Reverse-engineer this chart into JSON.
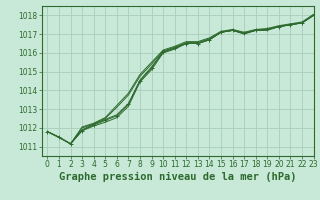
{
  "title": "Graphe pression niveau de la mer (hPa)",
  "bg_color": "#c8e8d8",
  "grid_color": "#aaccbb",
  "line_color": "#2d6a2d",
  "marker_color": "#2d6a2d",
  "xlim": [
    -0.5,
    23
  ],
  "ylim": [
    1010.5,
    1018.5
  ],
  "yticks": [
    1011,
    1012,
    1013,
    1014,
    1015,
    1016,
    1017,
    1018
  ],
  "xticks": [
    0,
    1,
    2,
    3,
    4,
    5,
    6,
    7,
    8,
    9,
    10,
    11,
    12,
    13,
    14,
    15,
    16,
    17,
    18,
    19,
    20,
    21,
    22,
    23
  ],
  "series": [
    [
      1011.8,
      1011.5,
      1011.15,
      1011.85,
      1012.1,
      1012.3,
      1012.55,
      1013.15,
      1014.45,
      1015.1,
      1016.0,
      1016.2,
      1016.5,
      1016.5,
      1016.7,
      1017.1,
      1017.2,
      1017.0,
      1017.2,
      1017.2,
      1017.4,
      1017.5,
      1017.6,
      1018.05
    ],
    [
      1011.8,
      1011.5,
      1011.15,
      1011.85,
      1012.15,
      1012.4,
      1012.65,
      1013.25,
      1014.5,
      1015.2,
      1016.05,
      1016.25,
      1016.5,
      1016.5,
      1016.7,
      1017.1,
      1017.2,
      1017.05,
      1017.2,
      1017.25,
      1017.4,
      1017.5,
      1017.6,
      1018.0
    ],
    [
      1011.8,
      1011.5,
      1011.15,
      1011.9,
      1012.2,
      1012.45,
      1012.7,
      1013.3,
      1014.55,
      1015.25,
      1016.05,
      1016.25,
      1016.5,
      1016.5,
      1016.7,
      1017.1,
      1017.2,
      1017.05,
      1017.2,
      1017.25,
      1017.4,
      1017.5,
      1017.6,
      1018.0
    ],
    [
      1011.8,
      1011.5,
      1011.15,
      1012.0,
      1012.2,
      1012.5,
      1013.1,
      1013.75,
      1014.75,
      1015.4,
      1016.1,
      1016.3,
      1016.55,
      1016.55,
      1016.75,
      1017.1,
      1017.2,
      1017.05,
      1017.2,
      1017.25,
      1017.4,
      1017.5,
      1017.6,
      1018.0
    ],
    [
      1011.8,
      1011.5,
      1011.15,
      1012.05,
      1012.25,
      1012.55,
      1013.2,
      1013.85,
      1014.85,
      1015.5,
      1016.15,
      1016.35,
      1016.6,
      1016.6,
      1016.8,
      1017.15,
      1017.25,
      1017.1,
      1017.25,
      1017.3,
      1017.45,
      1017.55,
      1017.65,
      1018.05
    ]
  ],
  "marker_series_idx": 1,
  "title_fontsize": 7.5,
  "tick_fontsize": 5.5
}
